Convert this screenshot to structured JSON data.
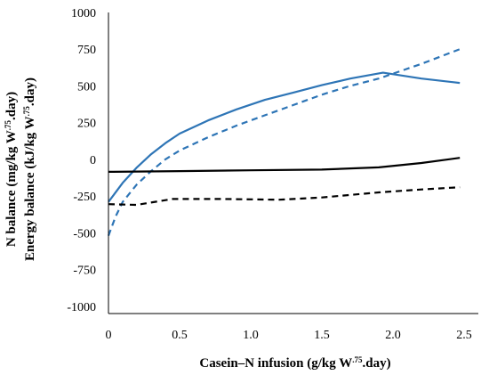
{
  "chart_data": {
    "type": "line",
    "xlabel": {
      "before": "Casein–N infusion  (g/kg W",
      "sup": ".75",
      "after": ".day)"
    },
    "ylabel_lines": [
      {
        "before": "N balance (mg/kg W",
        "sup": ".75",
        "after": ".day)"
      },
      {
        "before": "Energy balance (kJ/kg W",
        "sup": ".75",
        "after": ".day)"
      }
    ],
    "xlim": [
      0,
      2.6
    ],
    "ylim": [
      -1050,
      1000
    ],
    "x_ticks": [
      {
        "value": 0,
        "label": "0"
      },
      {
        "value": 0.5,
        "label": "0.5"
      },
      {
        "value": 1.0,
        "label": "1.0"
      },
      {
        "value": 1.5,
        "label": "1.5"
      },
      {
        "value": 2.0,
        "label": "2.0"
      },
      {
        "value": 2.5,
        "label": "2.5"
      }
    ],
    "y_ticks": [
      {
        "value": 1000,
        "label": "1000"
      },
      {
        "value": 750,
        "label": "750"
      },
      {
        "value": 500,
        "label": "500"
      },
      {
        "value": 250,
        "label": "250"
      },
      {
        "value": 0,
        "label": "0"
      },
      {
        "value": -250,
        "label": "-250"
      },
      {
        "value": -500,
        "label": "-500"
      },
      {
        "value": -750,
        "label": "-750"
      },
      {
        "value": -1000,
        "label": "-1000"
      }
    ],
    "grid": false,
    "colors": {
      "blue": "#2e75b6",
      "black": "#000000"
    },
    "series": [
      {
        "color": "#2e75b6",
        "dashed": false,
        "points": [
          [
            0,
            -290
          ],
          [
            0.1,
            -160
          ],
          [
            0.2,
            -55
          ],
          [
            0.3,
            35
          ],
          [
            0.4,
            110
          ],
          [
            0.5,
            175
          ],
          [
            0.7,
            265
          ],
          [
            0.9,
            340
          ],
          [
            1.1,
            405
          ],
          [
            1.3,
            455
          ],
          [
            1.5,
            505
          ],
          [
            1.7,
            550
          ],
          [
            1.93,
            590
          ],
          [
            2.2,
            550
          ],
          [
            2.47,
            520
          ]
        ]
      },
      {
        "color": "#2e75b6",
        "dashed": true,
        "points": [
          [
            0,
            -520
          ],
          [
            0.05,
            -390
          ],
          [
            0.1,
            -290
          ],
          [
            0.2,
            -170
          ],
          [
            0.3,
            -80
          ],
          [
            0.4,
            0
          ],
          [
            0.5,
            60
          ],
          [
            0.7,
            150
          ],
          [
            0.9,
            230
          ],
          [
            1.1,
            300
          ],
          [
            1.3,
            370
          ],
          [
            1.5,
            440
          ],
          [
            1.7,
            500
          ],
          [
            1.9,
            550
          ],
          [
            2.2,
            650
          ],
          [
            2.47,
            750
          ]
        ]
      },
      {
        "color": "#000000",
        "dashed": false,
        "points": [
          [
            0,
            -85
          ],
          [
            0.5,
            -80
          ],
          [
            1.0,
            -75
          ],
          [
            1.5,
            -70
          ],
          [
            1.9,
            -55
          ],
          [
            2.2,
            -25
          ],
          [
            2.47,
            10
          ]
        ]
      },
      {
        "color": "#000000",
        "dashed": true,
        "points": [
          [
            0,
            -305
          ],
          [
            0.2,
            -310
          ],
          [
            0.45,
            -270
          ],
          [
            0.8,
            -270
          ],
          [
            1.2,
            -275
          ],
          [
            1.5,
            -260
          ],
          [
            1.9,
            -225
          ],
          [
            2.2,
            -205
          ],
          [
            2.47,
            -190
          ]
        ]
      }
    ]
  }
}
